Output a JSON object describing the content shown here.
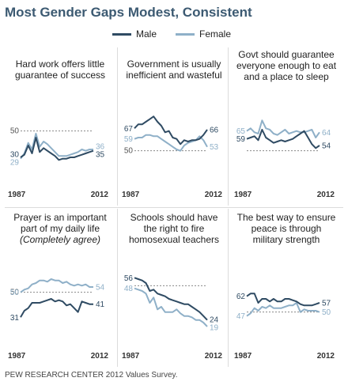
{
  "title": "Most Gender Gaps Modest, Consistent",
  "legend": [
    {
      "label": "Male",
      "color": "#2f4b63"
    },
    {
      "label": "Female",
      "color": "#8fb0c8"
    }
  ],
  "footer": "PEW RESEARCH  CENTER 2012 Values Survey.",
  "chart_data": [
    {
      "type": "line",
      "title_lines": [
        "Hard work offers little",
        "guarantee of success"
      ],
      "reference_label": "50",
      "x_labels": [
        "1987",
        "2012"
      ],
      "start_labels": {
        "male": "30",
        "female": "29"
      },
      "end_labels": {
        "male": "35",
        "female": "36"
      },
      "ylim": [
        15,
        75
      ],
      "series": [
        {
          "name": "Male",
          "color": "#2f4b63",
          "values": [
            30,
            32,
            39,
            33,
            45,
            34,
            37,
            35,
            33,
            31,
            28,
            29,
            29,
            30,
            30,
            31,
            32,
            33,
            34,
            35
          ]
        },
        {
          "name": "Female",
          "color": "#8fb0c8",
          "values": [
            29,
            33,
            41,
            36,
            48,
            38,
            42,
            40,
            37,
            34,
            31,
            31,
            31,
            32,
            33,
            34,
            36,
            35,
            36,
            36
          ]
        }
      ]
    },
    {
      "type": "line",
      "title_lines": [
        "Government is usually",
        "inefficient and wasteful"
      ],
      "reference_label": "50",
      "x_labels": [
        "1987",
        "2012"
      ],
      "start_labels": {
        "male": "67",
        "female": "59"
      },
      "end_labels": {
        "male": "66",
        "female": "53"
      },
      "ylim": [
        30,
        90
      ],
      "series": [
        {
          "name": "Male",
          "color": "#2f4b63",
          "values": [
            67,
            70,
            70,
            72,
            74,
            76,
            72,
            69,
            64,
            65,
            60,
            59,
            55,
            58,
            57,
            58,
            58,
            59,
            62,
            66
          ]
        },
        {
          "name": "Female",
          "color": "#8fb0c8",
          "values": [
            59,
            60,
            60,
            62,
            62,
            61,
            61,
            59,
            57,
            55,
            53,
            51,
            50,
            54,
            56,
            57,
            58,
            61,
            58,
            53
          ]
        }
      ]
    },
    {
      "type": "line",
      "title_lines": [
        "Govt should guarantee",
        "everyone enough to eat",
        "and a place to sleep"
      ],
      "reference_label": "",
      "x_labels": [
        "1987",
        "2012"
      ],
      "start_labels": {
        "male": "59",
        "female": "65"
      },
      "end_labels": {
        "male": "54",
        "female": "64"
      },
      "ylim": [
        30,
        90
      ],
      "series": [
        {
          "name": "Male",
          "color": "#2f4b63",
          "values": [
            59,
            60,
            61,
            58,
            66,
            60,
            58,
            56,
            57,
            58,
            57,
            58,
            59,
            61,
            63,
            65,
            60,
            55,
            52,
            54
          ]
        },
        {
          "name": "Female",
          "color": "#8fb0c8",
          "values": [
            65,
            67,
            64,
            63,
            73,
            67,
            66,
            63,
            62,
            64,
            66,
            63,
            64,
            65,
            64,
            64,
            65,
            66,
            60,
            64
          ]
        }
      ]
    },
    {
      "type": "line",
      "title_lines": [
        "Prayer is an important",
        "part of my daily life"
      ],
      "subtitle": "(Completely agree)",
      "reference_label": "50",
      "x_labels": [
        "1987",
        "2012"
      ],
      "start_labels": {
        "male": "31",
        "female": "50"
      },
      "end_labels": {
        "male": "41",
        "female": "54"
      },
      "ylim": [
        15,
        75
      ],
      "series": [
        {
          "name": "Male",
          "color": "#2f4b63",
          "values": [
            31,
            36,
            38,
            42,
            42,
            42,
            43,
            44,
            45,
            43,
            44,
            43,
            40,
            41,
            38,
            35,
            43,
            42,
            41,
            41
          ]
        },
        {
          "name": "Female",
          "color": "#8fb0c8",
          "values": [
            50,
            52,
            53,
            56,
            57,
            59,
            59,
            58,
            60,
            59,
            59,
            57,
            58,
            56,
            55,
            56,
            55,
            56,
            54,
            54
          ]
        }
      ]
    },
    {
      "type": "line",
      "title_lines": [
        "Schools should have",
        "the right to fire",
        "homosexual teachers"
      ],
      "reference_label": "",
      "x_labels": [
        "1987",
        "2012"
      ],
      "start_labels": {
        "male": "56",
        "female": "48"
      },
      "end_labels": {
        "male": "24",
        "female": "19"
      },
      "ylim": [
        10,
        70
      ],
      "series": [
        {
          "name": "Male",
          "color": "#2f4b63",
          "values": [
            56,
            55,
            54,
            52,
            46,
            47,
            44,
            43,
            42,
            40,
            39,
            38,
            37,
            36,
            36,
            34,
            32,
            30,
            27,
            24
          ]
        },
        {
          "name": "Female",
          "color": "#8fb0c8",
          "values": [
            48,
            47,
            46,
            44,
            37,
            41,
            32,
            34,
            30,
            30,
            30,
            32,
            29,
            27,
            27,
            26,
            24,
            24,
            22,
            19
          ]
        }
      ]
    },
    {
      "type": "line",
      "title_lines": [
        "The best way to ensure",
        "peace is through",
        "military strength"
      ],
      "reference_label": "",
      "x_labels": [
        "1987",
        "2012"
      ],
      "start_labels": {
        "male": "62",
        "female": "47"
      },
      "end_labels": {
        "male": "57",
        "female": "50"
      },
      "ylim": [
        30,
        90
      ],
      "series": [
        {
          "name": "Male",
          "color": "#2f4b63",
          "values": [
            62,
            64,
            64,
            57,
            60,
            60,
            58,
            60,
            58,
            58,
            60,
            60,
            59,
            58,
            56,
            55,
            55,
            55,
            56,
            57
          ]
        },
        {
          "name": "Female",
          "color": "#8fb0c8",
          "values": [
            47,
            49,
            53,
            51,
            54,
            53,
            55,
            53,
            53,
            53,
            54,
            55,
            55,
            57,
            50,
            52,
            51,
            51,
            51,
            50
          ]
        }
      ]
    }
  ]
}
